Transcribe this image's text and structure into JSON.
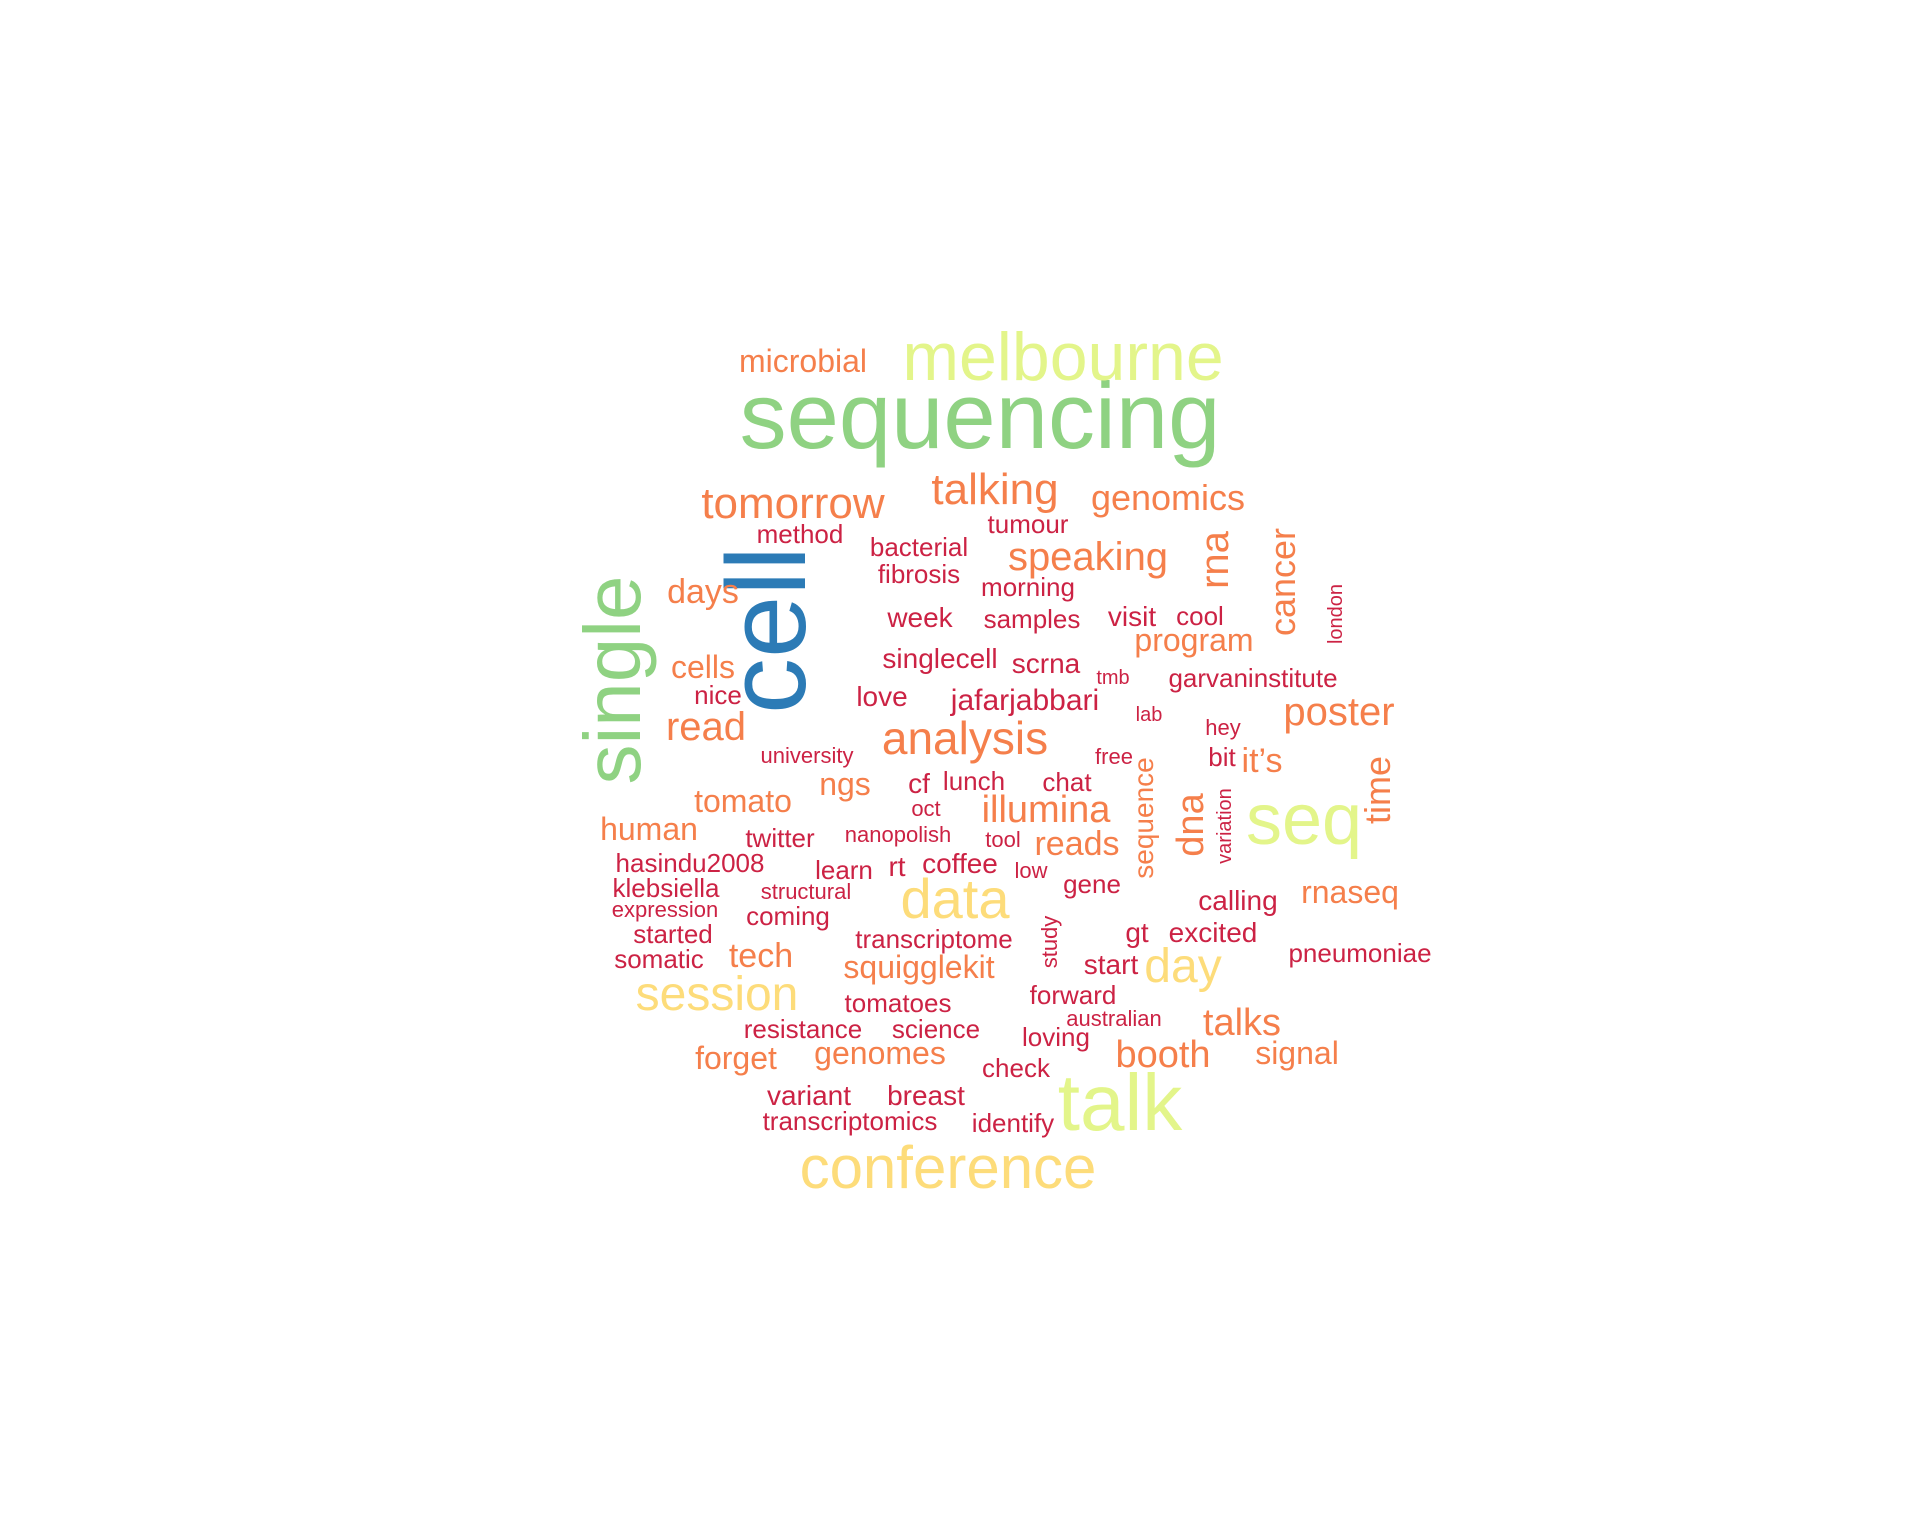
{
  "word_cloud": {
    "colors": {
      "blue": "#2c7bb6",
      "green": "#8fd282",
      "lime": "#e3f58a",
      "yellow": "#fddc7a",
      "orange": "#f57f4b",
      "red": "#cc2244"
    },
    "words": [
      {
        "text": "cell",
        "color": "blue",
        "weight": 10
      },
      {
        "text": "sequencing",
        "color": "green",
        "weight": 9
      },
      {
        "text": "single",
        "color": "green",
        "weight": 9
      },
      {
        "text": "melbourne",
        "color": "lime",
        "weight": 8
      },
      {
        "text": "talk",
        "color": "lime",
        "weight": 8
      },
      {
        "text": "seq",
        "color": "lime",
        "weight": 7
      },
      {
        "text": "conference",
        "color": "yellow",
        "weight": 7
      },
      {
        "text": "data",
        "color": "yellow",
        "weight": 6
      },
      {
        "text": "session",
        "color": "yellow",
        "weight": 6
      },
      {
        "text": "day",
        "color": "yellow",
        "weight": 5
      },
      {
        "text": "analysis",
        "color": "orange",
        "weight": 5
      },
      {
        "text": "tomorrow",
        "color": "orange",
        "weight": 5
      },
      {
        "text": "talking",
        "color": "orange",
        "weight": 5
      },
      {
        "text": "speaking",
        "color": "orange",
        "weight": 4
      },
      {
        "text": "genomics",
        "color": "orange",
        "weight": 4
      },
      {
        "text": "rna",
        "color": "orange",
        "weight": 4
      },
      {
        "text": "cancer",
        "color": "orange",
        "weight": 4
      },
      {
        "text": "poster",
        "color": "orange",
        "weight": 4
      },
      {
        "text": "illumina",
        "color": "orange",
        "weight": 4
      },
      {
        "text": "dna",
        "color": "orange",
        "weight": 4
      },
      {
        "text": "time",
        "color": "orange",
        "weight": 4
      },
      {
        "text": "read",
        "color": "orange",
        "weight": 4
      },
      {
        "text": "talks",
        "color": "orange",
        "weight": 4
      },
      {
        "text": "booth",
        "color": "orange",
        "weight": 4
      },
      {
        "text": "reads",
        "color": "orange",
        "weight": 3
      },
      {
        "text": "microbial",
        "color": "orange",
        "weight": 3
      },
      {
        "text": "days",
        "color": "orange",
        "weight": 3
      },
      {
        "text": "cells",
        "color": "orange",
        "weight": 3
      },
      {
        "text": "program",
        "color": "orange",
        "weight": 3
      },
      {
        "text": "it’s",
        "color": "orange",
        "weight": 3
      },
      {
        "text": "tomato",
        "color": "orange",
        "weight": 3
      },
      {
        "text": "ngs",
        "color": "orange",
        "weight": 3
      },
      {
        "text": "human",
        "color": "orange",
        "weight": 3
      },
      {
        "text": "sequence",
        "color": "orange",
        "weight": 3
      },
      {
        "text": "rnaseq",
        "color": "orange",
        "weight": 3
      },
      {
        "text": "tech",
        "color": "orange",
        "weight": 3
      },
      {
        "text": "squigglekit",
        "color": "orange",
        "weight": 3
      },
      {
        "text": "forget",
        "color": "orange",
        "weight": 3
      },
      {
        "text": "genomes",
        "color": "orange",
        "weight": 3
      },
      {
        "text": "signal",
        "color": "orange",
        "weight": 3
      },
      {
        "text": "method",
        "color": "red",
        "weight": 2
      },
      {
        "text": "bacterial",
        "color": "red",
        "weight": 2
      },
      {
        "text": "tumour",
        "color": "red",
        "weight": 2
      },
      {
        "text": "fibrosis",
        "color": "red",
        "weight": 2
      },
      {
        "text": "morning",
        "color": "red",
        "weight": 2
      },
      {
        "text": "week",
        "color": "red",
        "weight": 2
      },
      {
        "text": "samples",
        "color": "red",
        "weight": 2
      },
      {
        "text": "visit",
        "color": "red",
        "weight": 2
      },
      {
        "text": "cool",
        "color": "red",
        "weight": 2
      },
      {
        "text": "london",
        "color": "red",
        "weight": 1
      },
      {
        "text": "singlecell",
        "color": "red",
        "weight": 2
      },
      {
        "text": "scrna",
        "color": "red",
        "weight": 2
      },
      {
        "text": "tmb",
        "color": "red",
        "weight": 1
      },
      {
        "text": "garvaninstitute",
        "color": "red",
        "weight": 2
      },
      {
        "text": "nice",
        "color": "red",
        "weight": 2
      },
      {
        "text": "love",
        "color": "red",
        "weight": 2
      },
      {
        "text": "jafarjabbari",
        "color": "red",
        "weight": 2
      },
      {
        "text": "lab",
        "color": "red",
        "weight": 1
      },
      {
        "text": "hey",
        "color": "red",
        "weight": 1
      },
      {
        "text": "university",
        "color": "red",
        "weight": 1
      },
      {
        "text": "free",
        "color": "red",
        "weight": 1
      },
      {
        "text": "bit",
        "color": "red",
        "weight": 2
      },
      {
        "text": "cf",
        "color": "red",
        "weight": 2
      },
      {
        "text": "lunch",
        "color": "red",
        "weight": 2
      },
      {
        "text": "chat",
        "color": "red",
        "weight": 2
      },
      {
        "text": "oct",
        "color": "red",
        "weight": 1
      },
      {
        "text": "variation",
        "color": "red",
        "weight": 1
      },
      {
        "text": "twitter",
        "color": "red",
        "weight": 2
      },
      {
        "text": "nanopolish",
        "color": "red",
        "weight": 1
      },
      {
        "text": "tool",
        "color": "red",
        "weight": 1
      },
      {
        "text": "hasindu2008",
        "color": "red",
        "weight": 2
      },
      {
        "text": "learn",
        "color": "red",
        "weight": 2
      },
      {
        "text": "rt",
        "color": "red",
        "weight": 2
      },
      {
        "text": "coffee",
        "color": "red",
        "weight": 2
      },
      {
        "text": "low",
        "color": "red",
        "weight": 1
      },
      {
        "text": "klebsiella",
        "color": "red",
        "weight": 2
      },
      {
        "text": "structural",
        "color": "red",
        "weight": 1
      },
      {
        "text": "gene",
        "color": "red",
        "weight": 2
      },
      {
        "text": "expression",
        "color": "red",
        "weight": 1
      },
      {
        "text": "coming",
        "color": "red",
        "weight": 2
      },
      {
        "text": "calling",
        "color": "red",
        "weight": 2
      },
      {
        "text": "started",
        "color": "red",
        "weight": 2
      },
      {
        "text": "transcriptome",
        "color": "red",
        "weight": 2
      },
      {
        "text": "study",
        "color": "red",
        "weight": 1
      },
      {
        "text": "gt",
        "color": "red",
        "weight": 2
      },
      {
        "text": "excited",
        "color": "red",
        "weight": 2
      },
      {
        "text": "somatic",
        "color": "red",
        "weight": 2
      },
      {
        "text": "start",
        "color": "red",
        "weight": 2
      },
      {
        "text": "pneumoniae",
        "color": "red",
        "weight": 2
      },
      {
        "text": "tomatoes",
        "color": "red",
        "weight": 2
      },
      {
        "text": "forward",
        "color": "red",
        "weight": 2
      },
      {
        "text": "australian",
        "color": "red",
        "weight": 1
      },
      {
        "text": "resistance",
        "color": "red",
        "weight": 2
      },
      {
        "text": "science",
        "color": "red",
        "weight": 2
      },
      {
        "text": "loving",
        "color": "red",
        "weight": 2
      },
      {
        "text": "check",
        "color": "red",
        "weight": 2
      },
      {
        "text": "variant",
        "color": "red",
        "weight": 2
      },
      {
        "text": "breast",
        "color": "red",
        "weight": 2
      },
      {
        "text": "transcriptomics",
        "color": "red",
        "weight": 2
      },
      {
        "text": "identify",
        "color": "red",
        "weight": 2
      }
    ]
  }
}
